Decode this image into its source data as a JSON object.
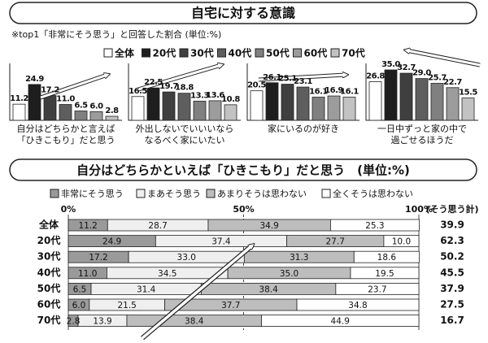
{
  "chart_data": [
    {
      "type": "bar",
      "title": "自宅に対する意識",
      "subtitle": "※top1「非常にそう思う」と回答した割合 (単位:%)",
      "categories": [
        "自分はどちらかと言えば\n「ひきこもり」だと思う",
        "外出しないでいいいなら\nなるべく家にいたい",
        "家にいるのが好き",
        "一日中ずっと家の中で\n過ごせるほうだ"
      ],
      "series": [
        {
          "name": "全体",
          "color": "#ffffff",
          "values": [
            11.2,
            16.5,
            20.5,
            26.8
          ],
          "value_labels": [
            "11.2",
            "16.5",
            "20.5",
            "26.8"
          ]
        },
        {
          "name": "20代",
          "color": "#1e1e1e",
          "values": [
            24.9,
            22.5,
            26.1,
            35.0
          ],
          "value_labels": [
            "24.9",
            "22.5",
            "26.1",
            "35.0"
          ]
        },
        {
          "name": "30代",
          "color": "#3f3f3f",
          "values": [
            17.2,
            19.7,
            25.1,
            32.7
          ],
          "value_labels": [
            "17.2",
            "19.7",
            "25.1",
            "32.7"
          ]
        },
        {
          "name": "40代",
          "color": "#5e5e5e",
          "values": [
            11.0,
            18.8,
            23.1,
            29.0
          ],
          "value_labels": [
            "11.0",
            "18.8",
            "23.1",
            "29.0"
          ]
        },
        {
          "name": "50代",
          "color": "#808080",
          "values": [
            6.5,
            13.3,
            16.1,
            25.7
          ],
          "value_labels": [
            "6.5",
            "13.3",
            "16.1",
            "25.7"
          ]
        },
        {
          "name": "60代",
          "color": "#9c9c9c",
          "values": [
            6.0,
            13.6,
            16.9,
            22.7
          ],
          "value_labels": [
            "6.0",
            "13.6",
            "16.9",
            "22.7"
          ]
        },
        {
          "name": "70代",
          "color": "#c2c2c2",
          "values": [
            2.8,
            10.8,
            16.1,
            15.5
          ],
          "value_labels": [
            "2.8",
            "10.8",
            "16.1",
            "15.5"
          ]
        }
      ]
    },
    {
      "type": "stacked_bar",
      "title": "自分はどちらかといえば「ひきこもり」だと思う　(単位:%)",
      "categories": [
        "全体",
        "20代",
        "30代",
        "40代",
        "50代",
        "60代",
        "70代"
      ],
      "series": [
        {
          "name": "非常にそう思う",
          "color": "#9a9a9a",
          "values": [
            11.2,
            24.9,
            17.2,
            11.0,
            6.5,
            6.0,
            2.8
          ],
          "value_labels": [
            "11.2",
            "24.9",
            "17.2",
            "11.0",
            "6.5",
            "6.0",
            "2.8"
          ]
        },
        {
          "name": "まあそう思う",
          "color": "#efefef",
          "values": [
            28.7,
            37.4,
            33.0,
            34.5,
            31.4,
            21.5,
            13.9
          ],
          "value_labels": [
            "28.7",
            "37.4",
            "33.0",
            "34.5",
            "31.4",
            "21.5",
            "13.9"
          ]
        },
        {
          "name": "あまりそうは思わない",
          "color": "#bdbdbd",
          "values": [
            34.9,
            27.7,
            31.3,
            35.0,
            38.4,
            37.7,
            38.4
          ],
          "value_labels": [
            "34.9",
            "27.7",
            "31.3",
            "35.0",
            "38.4",
            "37.7",
            "38.4"
          ]
        },
        {
          "name": "全くそうは思わない",
          "color": "#ffffff",
          "values": [
            25.3,
            10.0,
            18.6,
            19.5,
            23.7,
            34.8,
            44.9
          ],
          "value_labels": [
            "25.3",
            "10.0",
            "18.6",
            "19.5",
            "23.7",
            "34.8",
            "44.9"
          ]
        }
      ],
      "xlim": [
        0,
        100
      ],
      "xticks": [
        {
          "value": 0,
          "label": "0%"
        },
        {
          "value": 50,
          "label": "50%"
        },
        {
          "value": 100,
          "label": "100%"
        }
      ],
      "totals": {
        "label": "(そう思う計)",
        "values": [
          39.9,
          62.3,
          50.2,
          45.5,
          37.9,
          27.5,
          16.7
        ]
      }
    }
  ]
}
